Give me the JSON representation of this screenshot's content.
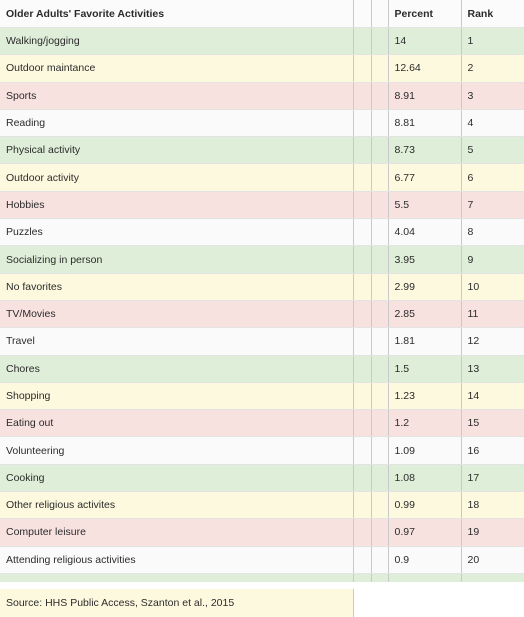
{
  "header": {
    "activity": "Older Adults' Favorite Activities",
    "percent": "Percent",
    "rank": "Rank"
  },
  "rows": [
    {
      "activity": "Walking/jogging",
      "percent": "14",
      "rank": "1"
    },
    {
      "activity": "Outdoor maintance",
      "percent": "12.64",
      "rank": "2"
    },
    {
      "activity": "Sports",
      "percent": "8.91",
      "rank": "3"
    },
    {
      "activity": "Reading",
      "percent": "8.81",
      "rank": "4"
    },
    {
      "activity": "Physical activity",
      "percent": "8.73",
      "rank": "5"
    },
    {
      "activity": "Outdoor activity",
      "percent": "6.77",
      "rank": "6"
    },
    {
      "activity": "Hobbies",
      "percent": "5.5",
      "rank": "7"
    },
    {
      "activity": "Puzzles",
      "percent": "4.04",
      "rank": "8"
    },
    {
      "activity": "Socializing in person",
      "percent": "3.95",
      "rank": "9"
    },
    {
      "activity": "No favorites",
      "percent": "2.99",
      "rank": "10"
    },
    {
      "activity": "TV/Movies",
      "percent": "2.85",
      "rank": "11"
    },
    {
      "activity": "Travel",
      "percent": "1.81",
      "rank": "12"
    },
    {
      "activity": "Chores",
      "percent": "1.5",
      "rank": "13"
    },
    {
      "activity": "Shopping",
      "percent": "1.23",
      "rank": "14"
    },
    {
      "activity": "Eating out",
      "percent": "1.2",
      "rank": "15"
    },
    {
      "activity": "Volunteering",
      "percent": "1.09",
      "rank": "16"
    },
    {
      "activity": "Cooking",
      "percent": "1.08",
      "rank": "17"
    },
    {
      "activity": "Other religious activites",
      "percent": "0.99",
      "rank": "18"
    },
    {
      "activity": "Computer leisure",
      "percent": "0.97",
      "rank": "19"
    },
    {
      "activity": "Attending religious activities",
      "percent": "0.9",
      "rank": "20"
    }
  ],
  "source": "Source: HHS Public Access, Szanton et al., 2015",
  "colors": {
    "green": "#dfeed8",
    "yellow": "#fdf9df",
    "pink": "#f8e2e0",
    "white": "#fafafa"
  }
}
